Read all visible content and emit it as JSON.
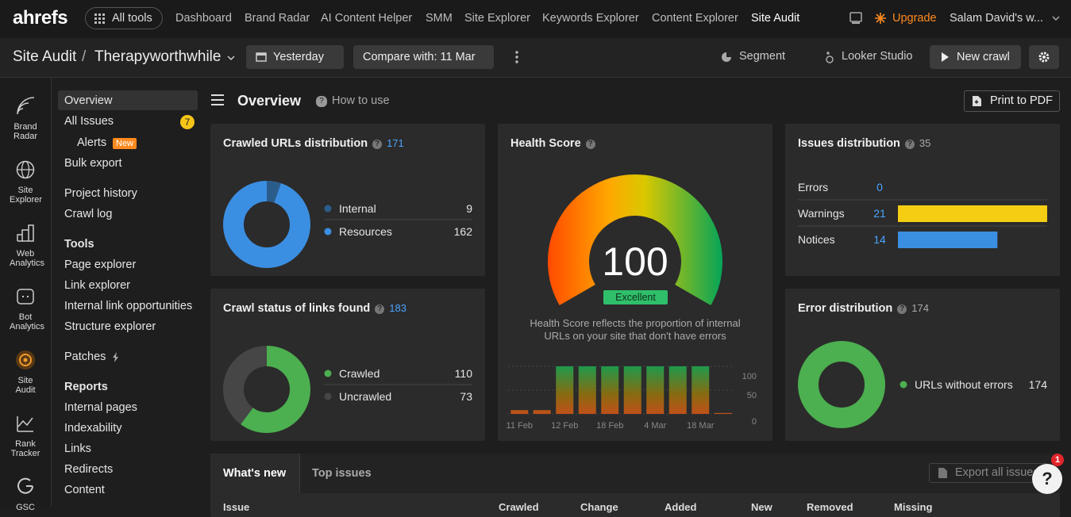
{
  "topnav": {
    "logo": "ahrefs",
    "all_tools": "All tools",
    "links": [
      "Dashboard",
      "Brand Radar",
      "AI Content Helper",
      "SMM",
      "Site Explorer",
      "Keywords Explorer",
      "Content Explorer",
      "Site Audit"
    ],
    "upgrade": "Upgrade",
    "account": "Salam David's w..."
  },
  "toolbar": {
    "section": "Site Audit",
    "separator": "/",
    "project": "Therapyworthwhile",
    "date": "Yesterday",
    "compare": "Compare with: 11 Mar",
    "segment": "Segment",
    "looker": "Looker Studio",
    "new_crawl": "New crawl"
  },
  "rail": [
    "Brand Radar",
    "Site Explorer",
    "Web Analytics",
    "Bot Analytics",
    "Site Audit",
    "Rank Tracker",
    "GSC"
  ],
  "sidebar": {
    "overview": "Overview",
    "all_issues": "All Issues",
    "all_issues_count": 7,
    "alerts": "Alerts",
    "alerts_badge": "New",
    "bulk_export": "Bulk export",
    "project_history": "Project history",
    "crawl_log": "Crawl log",
    "tools_heading": "Tools",
    "tools": [
      "Page explorer",
      "Link explorer",
      "Internal link opportunities",
      "Structure explorer"
    ],
    "patches": "Patches",
    "reports_heading": "Reports",
    "reports": [
      "Internal pages",
      "Indexability",
      "Links",
      "Redirects",
      "Content"
    ]
  },
  "overview": {
    "title": "Overview",
    "how_to_use": "How to use",
    "print": "Print to PDF"
  },
  "crawled_urls": {
    "type": "donut",
    "title": "Crawled URLs distribution",
    "total": 171,
    "items": [
      {
        "name": "Internal",
        "value": 9,
        "color": "#2b5d8c"
      },
      {
        "name": "Resources",
        "value": 162,
        "color": "#3b8fe2"
      }
    ]
  },
  "crawl_status": {
    "type": "donut",
    "title": "Crawl status of links found",
    "total": 183,
    "items": [
      {
        "name": "Crawled",
        "value": 110,
        "color": "#4caf50"
      },
      {
        "name": "Uncrawled",
        "value": 73,
        "color": "#464646"
      }
    ]
  },
  "health": {
    "title": "Health Score",
    "score": 100,
    "label": "Excellent",
    "description": "Health Score reflects the proportion of internal URLs on your site that don't have errors",
    "chart": {
      "type": "bar",
      "categories": [
        "11 Feb",
        null,
        "12 Feb",
        null,
        "18 Feb",
        null,
        "4 Mar",
        null,
        "18 Mar",
        null
      ],
      "values": [
        8,
        8,
        100,
        100,
        100,
        100,
        100,
        100,
        100,
        2
      ],
      "ylim": [
        0,
        100
      ],
      "yticks": [
        0,
        50,
        100
      ]
    }
  },
  "issues": {
    "type": "bar",
    "title": "Issues distribution",
    "total": 35,
    "rows": [
      {
        "name": "Errors",
        "value": 0,
        "color": "#e0443a"
      },
      {
        "name": "Warnings",
        "value": 21,
        "color": "#f5cd12"
      },
      {
        "name": "Notices",
        "value": 14,
        "color": "#3b8fe2"
      }
    ]
  },
  "error_distribution": {
    "type": "donut",
    "title": "Error distribution",
    "total": 174,
    "items": [
      {
        "name": "URLs without errors",
        "value": 174,
        "color": "#4caf50"
      }
    ]
  },
  "bottom": {
    "tabs": [
      "What's new",
      "Top issues"
    ],
    "export": "Export all issues",
    "notifications": 1,
    "help": "?",
    "headers": [
      "Issue",
      "Crawled",
      "Change",
      "Added",
      "New",
      "Removed",
      "Missing"
    ]
  }
}
